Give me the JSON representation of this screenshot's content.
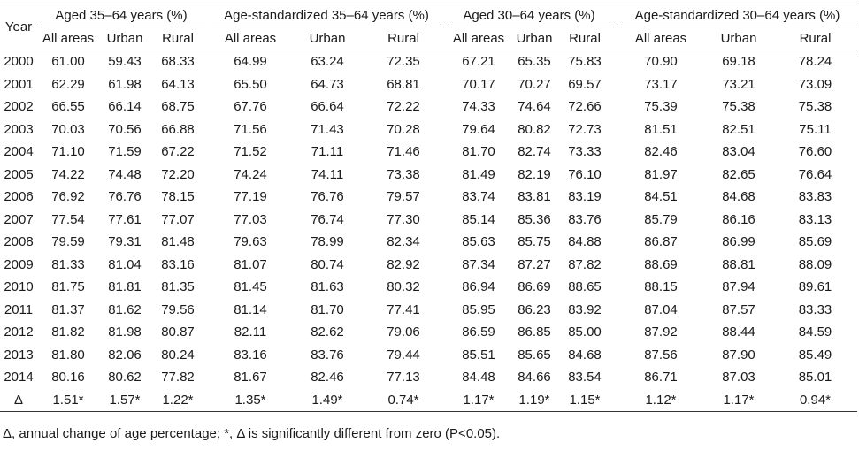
{
  "headers": {
    "year": "Year",
    "group1": "Aged 35–64 years (%)",
    "group2": "Age-standardized 35–64 years (%)",
    "group3": "Aged 30–64 years (%)",
    "group4": "Age-standardized 30–64 years (%)",
    "sub": [
      "All areas",
      "Urban",
      "Rural",
      "All areas",
      "Urban",
      "Rural",
      "All areas",
      "Urban",
      "Rural",
      "All areas",
      "Urban",
      "Rural"
    ]
  },
  "rows": [
    [
      "2000",
      "61.00",
      "59.43",
      "68.33",
      "64.99",
      "63.24",
      "72.35",
      "67.21",
      "65.35",
      "75.83",
      "70.90",
      "69.18",
      "78.24"
    ],
    [
      "2001",
      "62.29",
      "61.98",
      "64.13",
      "65.50",
      "64.73",
      "68.81",
      "70.17",
      "70.27",
      "69.57",
      "73.17",
      "73.21",
      "73.09"
    ],
    [
      "2002",
      "66.55",
      "66.14",
      "68.75",
      "67.76",
      "66.64",
      "72.22",
      "74.33",
      "74.64",
      "72.66",
      "75.39",
      "75.38",
      "75.38"
    ],
    [
      "2003",
      "70.03",
      "70.56",
      "66.88",
      "71.56",
      "71.43",
      "70.28",
      "79.64",
      "80.82",
      "72.73",
      "81.51",
      "82.51",
      "75.11"
    ],
    [
      "2004",
      "71.10",
      "71.59",
      "67.22",
      "71.52",
      "71.11",
      "71.46",
      "81.70",
      "82.74",
      "73.33",
      "82.46",
      "83.04",
      "76.60"
    ],
    [
      "2005",
      "74.22",
      "74.48",
      "72.20",
      "74.24",
      "74.11",
      "73.38",
      "81.49",
      "82.19",
      "76.10",
      "81.97",
      "82.65",
      "76.64"
    ],
    [
      "2006",
      "76.92",
      "76.76",
      "78.15",
      "77.19",
      "76.76",
      "79.57",
      "83.74",
      "83.81",
      "83.19",
      "84.51",
      "84.68",
      "83.83"
    ],
    [
      "2007",
      "77.54",
      "77.61",
      "77.07",
      "77.03",
      "76.74",
      "77.30",
      "85.14",
      "85.36",
      "83.76",
      "85.79",
      "86.16",
      "83.13"
    ],
    [
      "2008",
      "79.59",
      "79.31",
      "81.48",
      "79.63",
      "78.99",
      "82.34",
      "85.63",
      "85.75",
      "84.88",
      "86.87",
      "86.99",
      "85.69"
    ],
    [
      "2009",
      "81.33",
      "81.04",
      "83.16",
      "81.07",
      "80.74",
      "82.92",
      "87.34",
      "87.27",
      "87.82",
      "88.69",
      "88.81",
      "88.09"
    ],
    [
      "2010",
      "81.75",
      "81.81",
      "81.35",
      "81.45",
      "81.63",
      "80.32",
      "86.94",
      "86.69",
      "88.65",
      "88.15",
      "87.94",
      "89.61"
    ],
    [
      "2011",
      "81.37",
      "81.62",
      "79.56",
      "81.14",
      "81.70",
      "77.41",
      "85.95",
      "86.23",
      "83.92",
      "87.04",
      "87.57",
      "83.33"
    ],
    [
      "2012",
      "81.82",
      "81.98",
      "80.87",
      "82.11",
      "82.62",
      "79.06",
      "86.59",
      "86.85",
      "85.00",
      "87.92",
      "88.44",
      "84.59"
    ],
    [
      "2013",
      "81.80",
      "82.06",
      "80.24",
      "83.16",
      "83.76",
      "79.44",
      "85.51",
      "85.65",
      "84.68",
      "87.56",
      "87.90",
      "85.49"
    ],
    [
      "2014",
      "80.16",
      "80.62",
      "77.82",
      "81.67",
      "82.46",
      "77.13",
      "84.48",
      "84.66",
      "83.54",
      "86.71",
      "87.03",
      "85.01"
    ],
    [
      "Δ",
      "1.51*",
      "1.57*",
      "1.22*",
      "1.35*",
      "1.49*",
      "0.74*",
      "1.17*",
      "1.19*",
      "1.15*",
      "1.12*",
      "1.17*",
      "0.94*"
    ]
  ],
  "footnote": "Δ, annual change of age percentage; *, Δ is significantly different from zero (P<0.05)."
}
